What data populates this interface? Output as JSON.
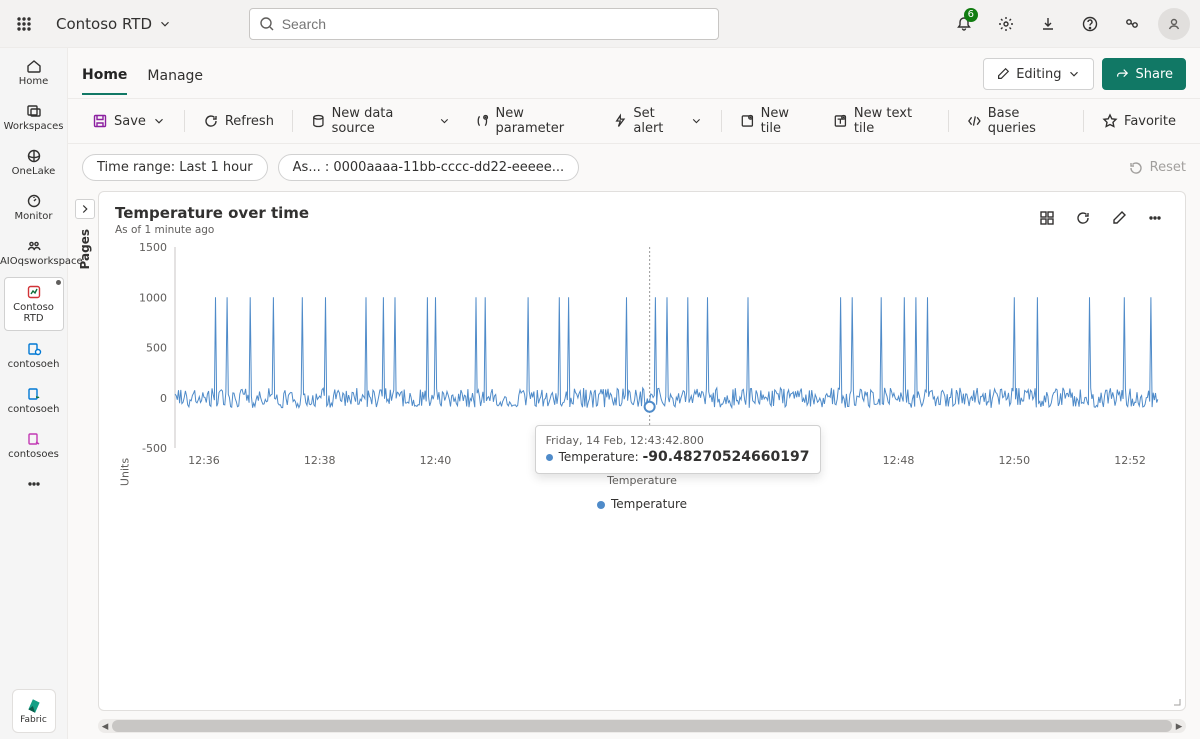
{
  "topbar": {
    "workspace_name": "Contoso RTD",
    "search_placeholder": "Search",
    "notification_count": "6"
  },
  "leftrail": {
    "items": [
      {
        "label": "Home"
      },
      {
        "label": "Workspaces"
      },
      {
        "label": "OneLake"
      },
      {
        "label": "Monitor"
      },
      {
        "label": "myAIOqsworkspace"
      },
      {
        "label": "Contoso RTD"
      },
      {
        "label": "contosoeh"
      },
      {
        "label": "contosoeh"
      },
      {
        "label": "contosoes"
      }
    ],
    "fabric_label": "Fabric"
  },
  "tabs": {
    "home": "Home",
    "manage": "Manage",
    "editing": "Editing",
    "share": "Share"
  },
  "toolbar": {
    "save": "Save",
    "refresh": "Refresh",
    "new_data_source": "New data source",
    "new_parameter": "New parameter",
    "set_alert": "Set alert",
    "new_tile": "New tile",
    "new_text_tile": "New text tile",
    "base_queries": "Base queries",
    "favorite": "Favorite"
  },
  "filters": {
    "time_range": "Time range: Last 1 hour",
    "asset": "As... : 0000aaaa-11bb-cccc-dd22-eeeee...",
    "reset": "Reset"
  },
  "pages_label": "Pages",
  "card": {
    "title": "Temperature over time",
    "subtitle": "As of 1 minute ago"
  },
  "chart": {
    "type": "line",
    "ylabel": "Units",
    "xlabel": "Temperature",
    "legend_label": "Temperature",
    "series_color": "#4f8bc9",
    "background_color": "#ffffff",
    "axis_color": "#c8c6c4",
    "tick_color": "#605e5c",
    "ylim": [
      -500,
      1500
    ],
    "yticks": [
      -500,
      0,
      500,
      1000,
      1500
    ],
    "xlim_minutes": [
      35.5,
      52.5
    ],
    "xticks": [
      "12:36",
      "12:38",
      "12:40",
      "12:42",
      "12:44",
      "12:46",
      "12:48",
      "12:50",
      "12:52"
    ],
    "noise_band": {
      "low": -100,
      "high": 100
    },
    "spike_value": 1000,
    "spike_positions_min": [
      36.2,
      36.4,
      36.8,
      37.2,
      37.7,
      38.1,
      38.8,
      39.1,
      39.3,
      39.85,
      40.0,
      40.7,
      40.85,
      41.6,
      42.15,
      42.3,
      43.3,
      43.8,
      44.0,
      44.35,
      44.7,
      45.4,
      47.0,
      47.2,
      47.7,
      48.1,
      48.3,
      48.5,
      50.0,
      50.4,
      51.3,
      51.9,
      52.35
    ],
    "marker_x_min": 43.7,
    "marker_y": -90,
    "tooltip": {
      "timestamp": "Friday, 14 Feb, 12:43:42.800",
      "label": "Temperature",
      "value": "-90.48270524660197"
    }
  }
}
